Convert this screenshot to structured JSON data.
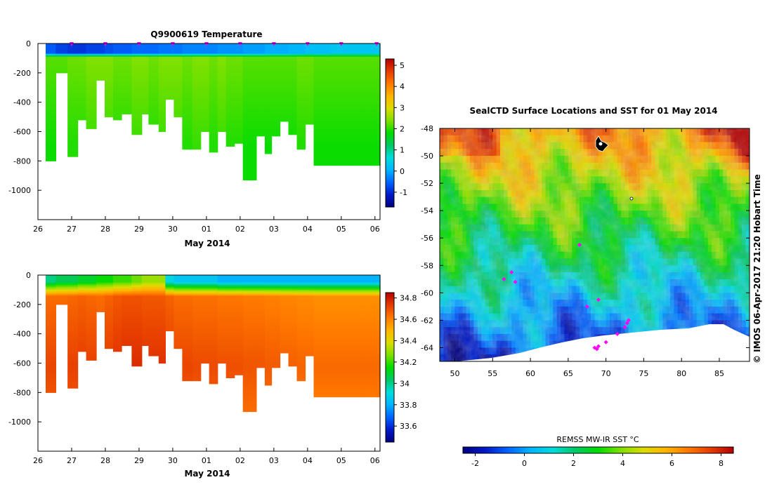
{
  "colors": {
    "temp_scale": [
      "#000080",
      "#0019c8",
      "#0064ff",
      "#00b4ff",
      "#00dcdc",
      "#00c864",
      "#00dc00",
      "#7fe000",
      "#dcdc00",
      "#ffb400",
      "#ff7800",
      "#e63c00",
      "#b40000"
    ],
    "sal_scale": [
      "#000080",
      "#0019c8",
      "#0064ff",
      "#00b4ff",
      "#00dcdc",
      "#00c864",
      "#00dc00",
      "#7fe000",
      "#dcdc00",
      "#ffb400",
      "#ff7800",
      "#e63c00",
      "#b40000"
    ],
    "sst_scale": [
      "#000080",
      "#0019c8",
      "#0064ff",
      "#00b4ff",
      "#00dcdc",
      "#00c864",
      "#00dc00",
      "#7fe000",
      "#dcdc00",
      "#ffb400",
      "#ff7800",
      "#e63c00",
      "#b40000"
    ],
    "marker": "#ff00ff",
    "land": "#ffffff"
  },
  "chart_data": [
    {
      "type": "heatmap",
      "title": "Q9900619  Temperature",
      "xlabel": "May 2014",
      "ylabel": "",
      "x_ticks": [
        "26",
        "27",
        "28",
        "29",
        "30",
        "01",
        "02",
        "03",
        "04",
        "05",
        "06"
      ],
      "y_ticks": [
        0,
        -200,
        -400,
        -600,
        -800,
        -1000
      ],
      "ylim": [
        -1200,
        0
      ],
      "colorbar_ticks": [
        5,
        4,
        3,
        2,
        1,
        0,
        -1
      ],
      "colorbar_range": [
        -1.7,
        5.3
      ],
      "profile_days": [
        26.35,
        26.65,
        27.0,
        27.3,
        27.55,
        27.85,
        28.1,
        28.35,
        28.6,
        28.9,
        29.2,
        29.4,
        29.7,
        29.9,
        30.15,
        30.4,
        30.7,
        30.95,
        31.2,
        31.45,
        31.7,
        31.95,
        32.2,
        32.4,
        32.6,
        32.85,
        33.05,
        33.3,
        33.55,
        33.8,
        34.05,
        34.3,
        34.55,
        34.8,
        35.05,
        35.3,
        35.55,
        35.8,
        36.05
      ],
      "profile_depths": [
        800,
        200,
        770,
        520,
        580,
        250,
        500,
        520,
        480,
        620,
        480,
        550,
        600,
        380,
        500,
        720,
        720,
        600,
        740,
        600,
        700,
        680,
        930,
        930,
        630,
        750,
        630,
        530,
        620,
        720,
        550,
        830,
        830,
        830,
        830,
        830,
        830,
        830,
        830
      ],
      "surface_temp": [
        -0.6,
        -0.8,
        -0.9,
        -0.9,
        -0.8,
        -0.8,
        -0.7,
        -0.6,
        -0.6,
        -0.5,
        -0.5,
        -0.5,
        -0.4,
        -0.4,
        -0.4,
        -0.3,
        -0.3,
        -0.3,
        -0.3,
        -0.2,
        -0.2,
        -0.2,
        -0.1,
        -0.1,
        -0.1,
        0.0,
        0.0,
        0.0,
        0.1,
        0.1,
        0.2,
        0.2,
        0.2,
        0.3,
        0.3,
        0.3,
        0.3,
        0.3,
        0.3
      ],
      "deep_temp": [
        1.8,
        1.8,
        1.9,
        1.9,
        2.0,
        2.0,
        2.0,
        1.9,
        1.9,
        2.0,
        2.0,
        1.9,
        2.0,
        2.0,
        2.0,
        1.9,
        2.0,
        2.0,
        1.9,
        2.0,
        1.9,
        1.9,
        1.8,
        1.8,
        1.8,
        1.8,
        1.8,
        1.8,
        1.8,
        1.9,
        1.9,
        1.8,
        1.8,
        1.8,
        1.8,
        1.8,
        1.8,
        1.8,
        1.8
      ],
      "marker_days": [
        27,
        28,
        29,
        30,
        31,
        32,
        33,
        34,
        35,
        36.05
      ]
    },
    {
      "type": "heatmap",
      "title": "",
      "xlabel": "May 2014",
      "ylabel": "",
      "x_ticks": [
        "26",
        "27",
        "28",
        "29",
        "30",
        "01",
        "02",
        "03",
        "04",
        "05",
        "06"
      ],
      "y_ticks": [
        0,
        -200,
        -400,
        -600,
        -800,
        -1000
      ],
      "ylim": [
        -1200,
        0
      ],
      "colorbar_ticks": [
        34.8,
        34.6,
        34.4,
        34.2,
        34,
        33.8,
        33.6
      ],
      "colorbar_range": [
        33.45,
        34.85
      ],
      "surface_sal": [
        34.0,
        34.05,
        34.05,
        34.1,
        34.1,
        34.15,
        34.15,
        34.2,
        34.2,
        34.25,
        34.3,
        34.3,
        34.3,
        33.9,
        33.85,
        33.85,
        33.85,
        33.85,
        33.85,
        33.8,
        33.8,
        33.8,
        33.8,
        33.8,
        33.8,
        33.8,
        33.8,
        33.8,
        33.8,
        33.8,
        33.8,
        33.8,
        33.8,
        33.8,
        33.8,
        33.8,
        33.8,
        33.8,
        33.8
      ],
      "deep_sal": [
        34.72,
        34.72,
        34.73,
        34.74,
        34.73,
        34.72,
        34.74,
        34.76,
        34.77,
        34.77,
        34.76,
        34.76,
        34.76,
        34.74,
        34.72,
        34.72,
        34.71,
        34.71,
        34.71,
        34.7,
        34.7,
        34.7,
        34.69,
        34.69,
        34.69,
        34.68,
        34.68,
        34.67,
        34.67,
        34.66,
        34.66,
        34.65,
        34.65,
        34.65,
        34.65,
        34.65,
        34.65,
        34.65,
        34.65
      ]
    },
    {
      "type": "heatmap",
      "title": "SealCTD Surface Locations and SST for 01 May 2014",
      "xlabel": "",
      "ylabel": "",
      "x_ticks": [
        "50",
        "55",
        "60",
        "65",
        "70",
        "75",
        "80",
        "85"
      ],
      "y_ticks": [
        "-48",
        "-50",
        "-52",
        "-54",
        "-56",
        "-58",
        "-60",
        "-62",
        "-64"
      ],
      "xlim": [
        48,
        89
      ],
      "ylim": [
        -65,
        -48
      ],
      "colorbar_label": "REMSS MW-IR SST °C",
      "colorbar_ticks": [
        "-2",
        "0",
        "2",
        "4",
        "6",
        "8"
      ],
      "colorbar_range": [
        -2.5,
        8.5
      ],
      "ctd_locations": [
        [
          68.5,
          -64.0
        ],
        [
          69.0,
          -63.9
        ],
        [
          68.8,
          -64.1
        ],
        [
          70.0,
          -63.6
        ],
        [
          71.5,
          -63.0
        ],
        [
          72.5,
          -62.5
        ],
        [
          73.0,
          -62.0
        ],
        [
          72.8,
          -62.2
        ],
        [
          57.5,
          -58.5
        ],
        [
          56.5,
          -59.0
        ],
        [
          58.0,
          -59.2
        ],
        [
          66.5,
          -56.5
        ],
        [
          69.0,
          -60.5
        ],
        [
          67.5,
          -61.0
        ]
      ],
      "release_location": [
        69.0,
        -49.7
      ]
    }
  ],
  "credit": "©  IMOS 06-Apr-2017 21:20 Hobart Time"
}
